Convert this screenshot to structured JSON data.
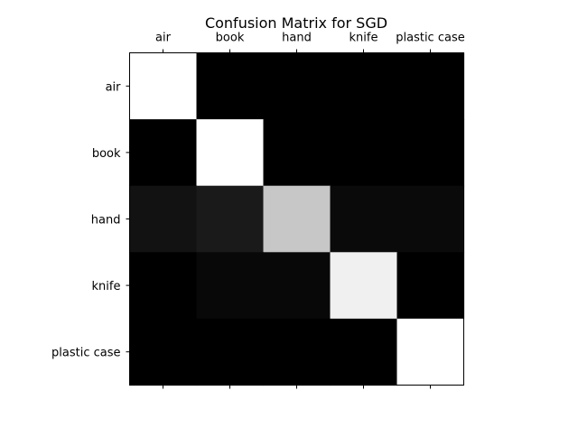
{
  "chart_data": {
    "type": "heatmap",
    "title": "Confusion Matrix for SGD",
    "colormap": "gray",
    "x_categories": [
      "air",
      "book",
      "hand",
      "knife",
      "plastic case"
    ],
    "y_categories": [
      "air",
      "book",
      "hand",
      "knife",
      "plastic case"
    ],
    "values": [
      [
        1.0,
        0.0,
        0.0,
        0.0,
        0.0
      ],
      [
        0.0,
        1.0,
        0.0,
        0.0,
        0.0
      ],
      [
        0.07,
        0.1,
        0.78,
        0.04,
        0.04
      ],
      [
        0.0,
        0.03,
        0.03,
        0.94,
        0.0
      ],
      [
        0.0,
        0.0,
        0.0,
        0.0,
        1.0
      ]
    ],
    "x_ticks_position": "top",
    "grid": false,
    "legend": false
  }
}
